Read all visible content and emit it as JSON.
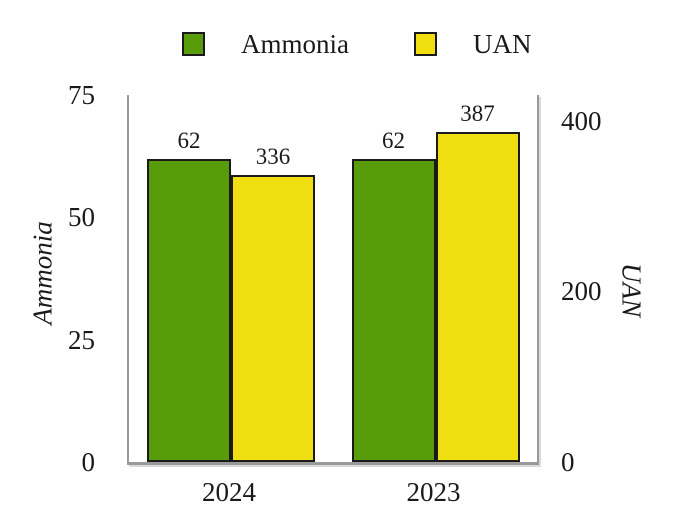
{
  "chart_data": {
    "type": "bar",
    "title": "",
    "categories": [
      "2024",
      "2023"
    ],
    "series": [
      {
        "name": "Ammonia",
        "axis": "left",
        "color": "#589b0b",
        "values": [
          62,
          62
        ]
      },
      {
        "name": "UAN",
        "axis": "right",
        "color": "#efdf10",
        "values": [
          336,
          387
        ]
      }
    ],
    "axes": {
      "left": {
        "label": "Ammonia",
        "ticks": [
          0,
          25,
          50,
          75
        ],
        "min": 0,
        "max": 75
      },
      "right": {
        "label": "UAN",
        "ticks": [
          0,
          200,
          400
        ],
        "min": 0,
        "max": 430
      }
    },
    "legend_position": "top",
    "grid": false,
    "bar_value_labels_shown": true
  },
  "colors": {
    "bar_border": "#1a1a1a",
    "axis_line": "#9a9a9a",
    "text": "#1a1a1a",
    "background": "#ffffff"
  }
}
